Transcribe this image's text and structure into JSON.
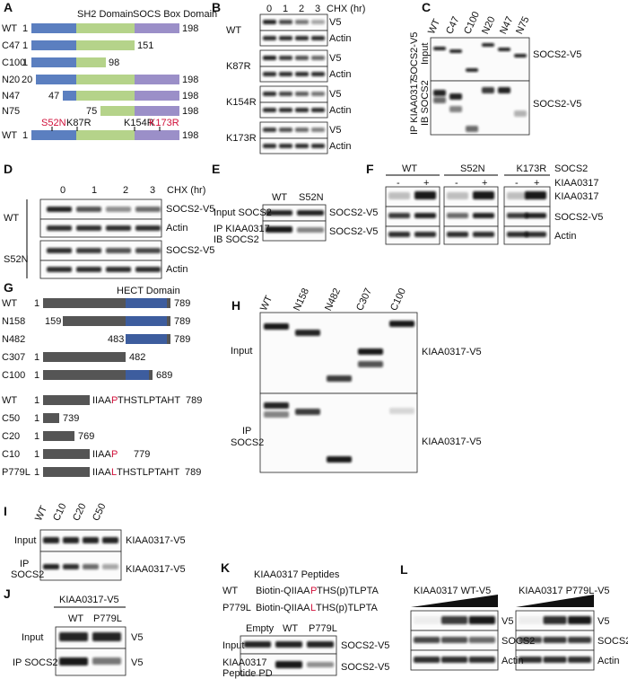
{
  "panel_a": {
    "label": "A",
    "domains": [
      "SH2 Domain",
      "SOCS Box Domain"
    ],
    "rows": [
      {
        "name": "WT",
        "start": 1,
        "end": 198
      },
      {
        "name": "C47",
        "start": 1,
        "end": 151
      },
      {
        "name": "C100",
        "start": 1,
        "end": 98
      },
      {
        "name": "N20",
        "start": 20,
        "end": 198
      },
      {
        "name": "N47",
        "start": 47,
        "end": 198
      },
      {
        "name": "N75",
        "start": 75,
        "end": 198
      },
      {
        "name": "WT",
        "start": 1,
        "end": 198
      }
    ],
    "mutations": [
      "S52N",
      "K87R",
      "K154R",
      "K173R"
    ]
  },
  "panel_b": {
    "label": "B",
    "times": [
      0,
      1,
      2,
      3
    ],
    "time_unit": "CHX (hr)",
    "groups": [
      "WT",
      "K87R",
      "K154R",
      "K173R"
    ],
    "bands": [
      "V5",
      "Actin"
    ]
  },
  "panel_c": {
    "label": "C",
    "lanes": [
      "WT",
      "C47",
      "C100",
      "N20",
      "N47",
      "N75"
    ],
    "input_label": [
      "SOCS2-V5",
      "Input"
    ],
    "ip_label": [
      "IP KIAA0317",
      "IB SOCS2"
    ],
    "band_labels": [
      "SOCS2-V5",
      "SOCS2-V5"
    ]
  },
  "panel_d": {
    "label": "D",
    "times": [
      0,
      1,
      2,
      3
    ],
    "time_unit": "CHX (hr)",
    "groups": [
      "WT",
      "S52N"
    ],
    "bands": [
      "SOCS2-V5",
      "Actin"
    ]
  },
  "panel_e": {
    "label": "E",
    "lanes": [
      "WT",
      "S52N"
    ],
    "rows": [
      "Input SOCS2",
      "IP KIAA0317",
      "IB SOCS2"
    ],
    "band_labels": [
      "SOCS2-V5",
      "SOCS2-V5"
    ]
  },
  "panel_f": {
    "label": "F",
    "groups": [
      "WT",
      "S52N",
      "K173R"
    ],
    "row_labels": [
      "SOCS2",
      "KIAA0317"
    ],
    "signs": [
      "-",
      "+"
    ],
    "band_labels": [
      "KIAA0317",
      "SOCS2-V5",
      "Actin"
    ]
  },
  "panel_g": {
    "label": "G",
    "domain": "HECT Domain",
    "rows": [
      {
        "name": "WT",
        "start": 1,
        "end": 789
      },
      {
        "name": "N158",
        "start": 159,
        "end": 789
      },
      {
        "name": "N482",
        "start": 483,
        "end": 789
      },
      {
        "name": "C307",
        "start": 1,
        "end": 482
      },
      {
        "name": "C100",
        "start": 1,
        "end": 689
      }
    ],
    "seq_rows": [
      {
        "name": "WT",
        "start": 1,
        "pre": "IIAA",
        "mut": "P",
        "post": "THSTLPTAHT",
        "end": 789
      },
      {
        "name": "C50",
        "start": 1,
        "end": 739
      },
      {
        "name": "C20",
        "start": 1,
        "end": 769
      },
      {
        "name": "C10",
        "start": 1,
        "pre": "IIAA",
        "mut": "P",
        "end": 779
      },
      {
        "name": "P779L",
        "start": 1,
        "pre": "IIAA",
        "mut": "L",
        "post": "THSTLPTAHT",
        "end": 789
      }
    ]
  },
  "panel_h": {
    "label": "H",
    "lanes": [
      "WT",
      "N158",
      "N482",
      "C307",
      "C100"
    ],
    "rows": [
      "Input",
      "IP",
      "SOCS2"
    ],
    "band_labels": [
      "KIAA0317-V5",
      "KIAA0317-V5"
    ]
  },
  "panel_i": {
    "label": "I",
    "lanes": [
      "WT",
      "C10",
      "C20",
      "C50"
    ],
    "rows": [
      "Input",
      "IP",
      "SOCS2"
    ],
    "band_labels": [
      "KIAA0317-V5",
      "KIAA0317-V5"
    ]
  },
  "panel_j": {
    "label": "J",
    "header": "KIAA0317-V5",
    "lanes": [
      "WT",
      "P779L"
    ],
    "rows": [
      "Input",
      "IP SOCS2"
    ],
    "band_labels": [
      "V5",
      "V5"
    ]
  },
  "panel_k": {
    "label": "K",
    "title": "KIAA0317 Peptides",
    "peptides": [
      {
        "name": "WT",
        "pre": "Biotin-QIIAA",
        "mut": "P",
        "post": "THS(p)TLPTA"
      },
      {
        "name": "P779L",
        "pre": "Biotin-QIIAA",
        "mut": "L",
        "post": "THS(p)TLPTA"
      }
    ],
    "lanes": [
      "Empty",
      "WT",
      "P779L"
    ],
    "rows": [
      "Input",
      "KIAA0317",
      "Peptide PD"
    ],
    "band_labels": [
      "SOCS2-V5",
      "SOCS2-V5"
    ]
  },
  "panel_l": {
    "label": "L",
    "blots": [
      {
        "title": "KIAA0317 WT-V5",
        "band_labels": [
          "V5",
          "SOCS2",
          "Actin"
        ]
      },
      {
        "title": "KIAA0317 P779L-V5",
        "band_labels": [
          "V5",
          "SOCS2",
          "Actin"
        ]
      }
    ]
  }
}
